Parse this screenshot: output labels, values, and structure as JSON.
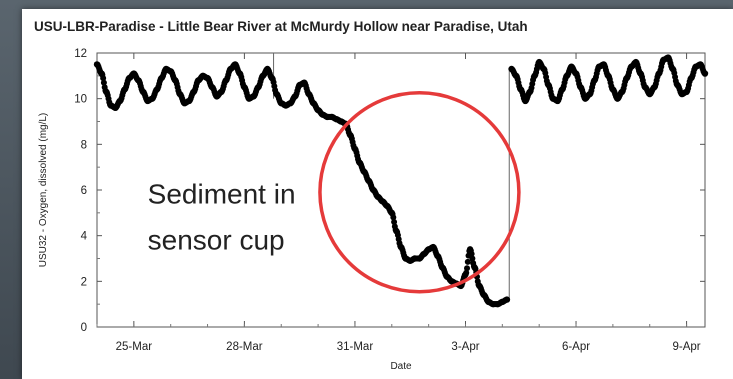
{
  "chart_data": {
    "type": "scatter",
    "title": "USU-LBR-Paradise - Little Bear River at McMurdy Hollow near Paradise, Utah",
    "xlabel": "Date",
    "ylabel": "USU32 - Oxygen, dissolved  (mg/L)",
    "ylim": [
      0,
      12
    ],
    "xlim": [
      "2008-03-24",
      "2008-04-09 12:00"
    ],
    "x_ticks": [
      "25-Mar",
      "28-Mar",
      "31-Mar",
      "3-Apr",
      "6-Apr",
      "9-Apr"
    ],
    "y_ticks": [
      0,
      2,
      4,
      6,
      8,
      10,
      12
    ],
    "grid": false,
    "marker_color": "#000000",
    "series": [
      {
        "points": [
          [
            "2008-03-24 00:00",
            11.5
          ],
          [
            "2008-03-24 03:00",
            11.1
          ],
          [
            "2008-03-24 06:00",
            10.3
          ],
          [
            "2008-03-24 09:00",
            9.7
          ],
          [
            "2008-03-24 12:00",
            9.6
          ],
          [
            "2008-03-24 15:00",
            9.9
          ],
          [
            "2008-03-24 18:00",
            10.4
          ],
          [
            "2008-03-24 21:00",
            10.9
          ],
          [
            "2008-03-25 00:00",
            11.1
          ],
          [
            "2008-03-25 03:00",
            10.8
          ],
          [
            "2008-03-25 06:00",
            10.3
          ],
          [
            "2008-03-25 09:00",
            9.9
          ],
          [
            "2008-03-25 12:00",
            10.0
          ],
          [
            "2008-03-25 15:00",
            10.4
          ],
          [
            "2008-03-25 18:00",
            10.9
          ],
          [
            "2008-03-25 21:00",
            11.3
          ],
          [
            "2008-03-26 00:00",
            11.2
          ],
          [
            "2008-03-26 03:00",
            10.8
          ],
          [
            "2008-03-26 06:00",
            10.2
          ],
          [
            "2008-03-26 09:00",
            9.8
          ],
          [
            "2008-03-26 12:00",
            9.9
          ],
          [
            "2008-03-26 15:00",
            10.3
          ],
          [
            "2008-03-26 18:00",
            10.8
          ],
          [
            "2008-03-26 21:00",
            11.0
          ],
          [
            "2008-03-27 00:00",
            10.9
          ],
          [
            "2008-03-27 03:00",
            10.5
          ],
          [
            "2008-03-27 06:00",
            10.1
          ],
          [
            "2008-03-27 09:00",
            10.3
          ],
          [
            "2008-03-27 12:00",
            10.8
          ],
          [
            "2008-03-27 15:00",
            11.3
          ],
          [
            "2008-03-27 18:00",
            11.5
          ],
          [
            "2008-03-27 21:00",
            11.1
          ],
          [
            "2008-03-28 00:00",
            10.5
          ],
          [
            "2008-03-28 03:00",
            10.0
          ],
          [
            "2008-03-28 06:00",
            10.1
          ],
          [
            "2008-03-28 09:00",
            10.5
          ],
          [
            "2008-03-28 12:00",
            11.0
          ],
          [
            "2008-03-28 15:00",
            11.3
          ],
          [
            "2008-03-28 18:00",
            10.9
          ],
          [
            "2008-03-28 21:00",
            10.2
          ],
          [
            "2008-03-29 00:00",
            9.8
          ],
          [
            "2008-03-29 03:00",
            9.7
          ],
          [
            "2008-03-29 06:00",
            9.8
          ],
          [
            "2008-03-29 09:00",
            10.1
          ],
          [
            "2008-03-29 12:00",
            10.6
          ],
          [
            "2008-03-29 15:00",
            10.7
          ],
          [
            "2008-03-29 18:00",
            10.2
          ],
          [
            "2008-03-29 21:00",
            9.8
          ],
          [
            "2008-03-30 00:00",
            9.5
          ],
          [
            "2008-03-30 03:00",
            9.3
          ],
          [
            "2008-03-30 06:00",
            9.2
          ],
          [
            "2008-03-30 09:00",
            9.2
          ],
          [
            "2008-03-30 12:00",
            9.1
          ],
          [
            "2008-03-30 15:00",
            9.0
          ],
          [
            "2008-03-30 18:00",
            8.9
          ],
          [
            "2008-03-30 21:00",
            8.4
          ],
          [
            "2008-03-31 00:00",
            7.8
          ],
          [
            "2008-03-31 03:00",
            7.2
          ],
          [
            "2008-03-31 06:00",
            6.8
          ],
          [
            "2008-03-31 09:00",
            6.4
          ],
          [
            "2008-03-31 12:00",
            6.0
          ],
          [
            "2008-03-31 15:00",
            5.7
          ],
          [
            "2008-03-31 18:00",
            5.5
          ],
          [
            "2008-03-31 21:00",
            5.3
          ],
          [
            "2008-04-01 00:00",
            5.0
          ],
          [
            "2008-04-01 03:00",
            4.2
          ],
          [
            "2008-04-01 06:00",
            3.5
          ],
          [
            "2008-04-01 09:00",
            3.0
          ],
          [
            "2008-04-01 12:00",
            2.9
          ],
          [
            "2008-04-01 15:00",
            3.0
          ],
          [
            "2008-04-01 18:00",
            3.0
          ],
          [
            "2008-04-01 21:00",
            3.2
          ],
          [
            "2008-04-02 00:00",
            3.4
          ],
          [
            "2008-04-02 03:00",
            3.5
          ],
          [
            "2008-04-02 06:00",
            3.1
          ],
          [
            "2008-04-02 09:00",
            2.6
          ],
          [
            "2008-04-02 12:00",
            2.2
          ],
          [
            "2008-04-02 15:00",
            2.0
          ],
          [
            "2008-04-02 18:00",
            1.9
          ],
          [
            "2008-04-02 21:00",
            1.8
          ],
          [
            "2008-04-03 00:00",
            2.3
          ],
          [
            "2008-04-03 03:00",
            3.4
          ],
          [
            "2008-04-03 06:00",
            2.6
          ],
          [
            "2008-04-03 09:00",
            1.8
          ],
          [
            "2008-04-03 12:00",
            1.4
          ],
          [
            "2008-04-03 15:00",
            1.1
          ],
          [
            "2008-04-03 18:00",
            1.0
          ],
          [
            "2008-04-03 21:00",
            1.0
          ],
          [
            "2008-04-04 00:00",
            1.1
          ],
          [
            "2008-04-04 03:00",
            1.2
          ],
          [
            "2008-04-04 06:00",
            11.3
          ],
          [
            "2008-04-04 09:00",
            11.0
          ],
          [
            "2008-04-04 12:00",
            10.4
          ],
          [
            "2008-04-04 15:00",
            9.9
          ],
          [
            "2008-04-04 18:00",
            10.3
          ],
          [
            "2008-04-04 21:00",
            11.0
          ],
          [
            "2008-04-05 00:00",
            11.6
          ],
          [
            "2008-04-05 03:00",
            11.3
          ],
          [
            "2008-04-05 06:00",
            10.6
          ],
          [
            "2008-04-05 09:00",
            10.0
          ],
          [
            "2008-04-05 12:00",
            9.9
          ],
          [
            "2008-04-05 15:00",
            10.4
          ],
          [
            "2008-04-05 18:00",
            11.0
          ],
          [
            "2008-04-05 21:00",
            11.4
          ],
          [
            "2008-04-06 00:00",
            11.1
          ],
          [
            "2008-04-06 03:00",
            10.5
          ],
          [
            "2008-04-06 06:00",
            10.0
          ],
          [
            "2008-04-06 09:00",
            10.2
          ],
          [
            "2008-04-06 12:00",
            10.8
          ],
          [
            "2008-04-06 15:00",
            11.4
          ],
          [
            "2008-04-06 18:00",
            11.5
          ],
          [
            "2008-04-06 21:00",
            11.0
          ],
          [
            "2008-04-07 00:00",
            10.4
          ],
          [
            "2008-04-07 03:00",
            10.0
          ],
          [
            "2008-04-07 06:00",
            10.3
          ],
          [
            "2008-04-07 09:00",
            10.9
          ],
          [
            "2008-04-07 12:00",
            11.4
          ],
          [
            "2008-04-07 15:00",
            11.6
          ],
          [
            "2008-04-07 18:00",
            11.1
          ],
          [
            "2008-04-07 21:00",
            10.5
          ],
          [
            "2008-04-08 00:00",
            10.2
          ],
          [
            "2008-04-08 03:00",
            10.5
          ],
          [
            "2008-04-08 06:00",
            11.1
          ],
          [
            "2008-04-08 09:00",
            11.7
          ],
          [
            "2008-04-08 12:00",
            11.8
          ],
          [
            "2008-04-08 15:00",
            11.3
          ],
          [
            "2008-04-08 18:00",
            10.6
          ],
          [
            "2008-04-08 21:00",
            10.2
          ],
          [
            "2008-04-09 00:00",
            10.3
          ],
          [
            "2008-04-09 03:00",
            10.9
          ],
          [
            "2008-04-09 06:00",
            11.4
          ],
          [
            "2008-04-09 09:00",
            11.5
          ],
          [
            "2008-04-09 12:00",
            11.1
          ]
        ]
      }
    ],
    "reference_lines": [
      {
        "x": "2008-03-28 19:00",
        "y": [
          10.0,
          12.0
        ]
      },
      {
        "x": "2008-04-04 04:30",
        "y": [
          1.2,
          11.3
        ]
      }
    ],
    "annotations": [
      {
        "lines": [
          "Sediment in",
          "sensor cup"
        ],
        "x": "2008-03-25 09:00",
        "y": [
          5.4,
          3.4
        ]
      },
      {
        "shape": "circle",
        "color": "#e53a3a",
        "center_x": "2008-04-01 18:00",
        "center_y": 5.9,
        "radius_days": 2.7
      }
    ]
  }
}
